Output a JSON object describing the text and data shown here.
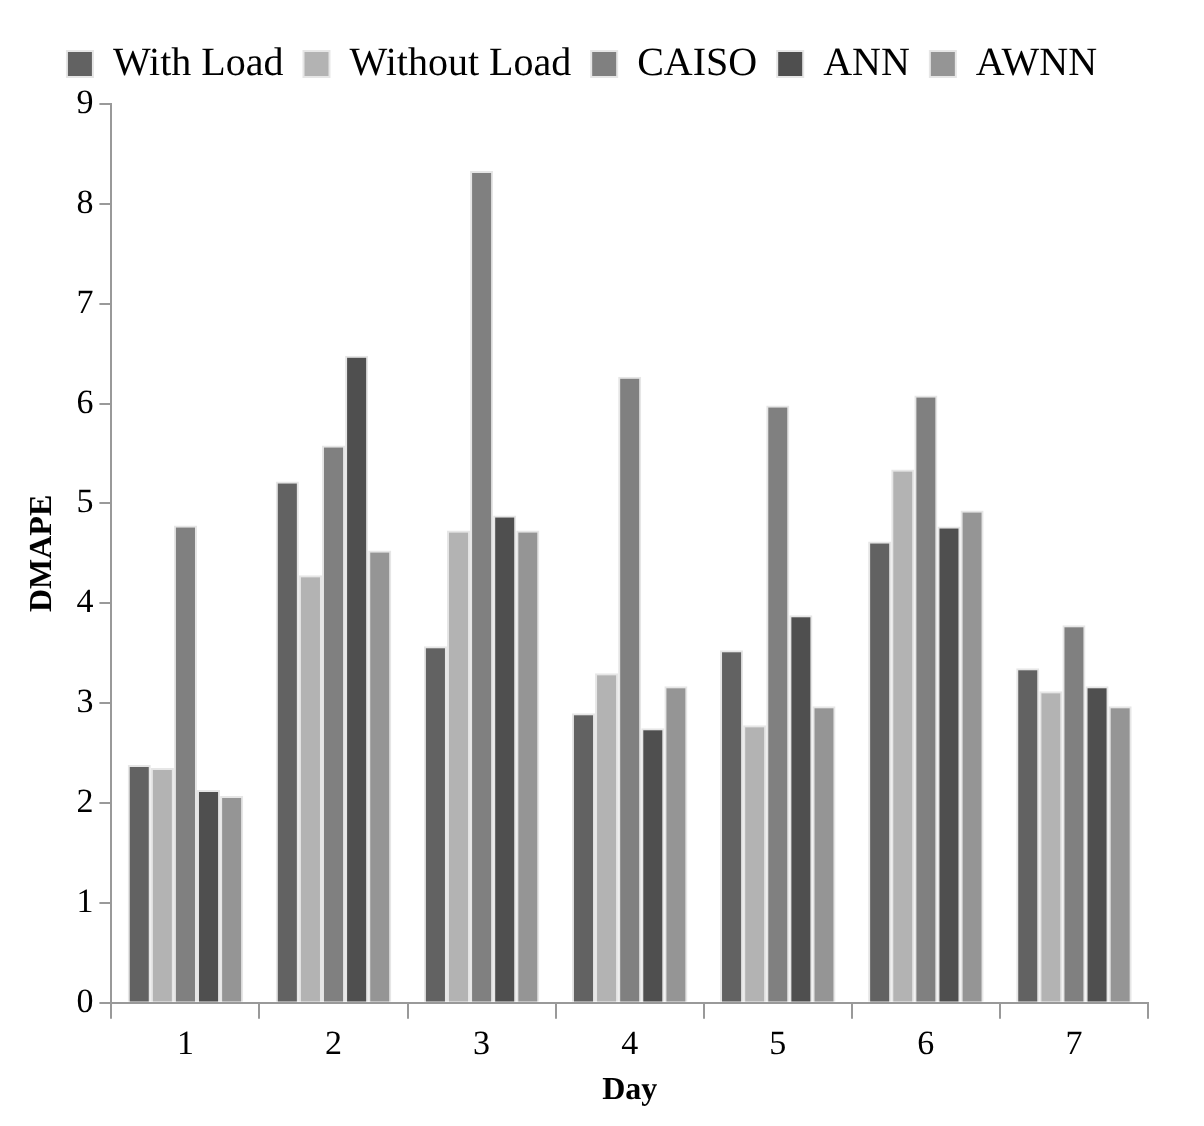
{
  "chart_data": {
    "type": "bar",
    "xlabel": "Day",
    "ylabel": "DMAPE",
    "categories": [
      "1",
      "2",
      "3",
      "4",
      "5",
      "6",
      "7"
    ],
    "series": [
      {
        "name": "With Load",
        "color": "#626262",
        "values": [
          2.38,
          5.22,
          3.57,
          2.9,
          3.53,
          4.62,
          3.35
        ]
      },
      {
        "name": "Without Load",
        "color": "#b3b3b3",
        "values": [
          2.35,
          4.28,
          4.73,
          3.3,
          2.78,
          5.34,
          3.12
        ]
      },
      {
        "name": "CAISO",
        "color": "#808080",
        "values": [
          4.78,
          5.58,
          8.33,
          6.27,
          5.98,
          6.08,
          3.78
        ]
      },
      {
        "name": "ANN",
        "color": "#4f4f4f",
        "values": [
          2.13,
          6.48,
          4.88,
          2.75,
          3.88,
          4.77,
          3.17
        ]
      },
      {
        "name": "AWNN",
        "color": "#959595",
        "values": [
          2.07,
          4.53,
          4.73,
          3.17,
          2.97,
          4.93,
          2.97
        ]
      }
    ],
    "ylim": [
      0,
      9
    ],
    "yticks": [
      0,
      1,
      2,
      3,
      4,
      5,
      6,
      7,
      8,
      9
    ],
    "grid": false,
    "legend": "top"
  }
}
